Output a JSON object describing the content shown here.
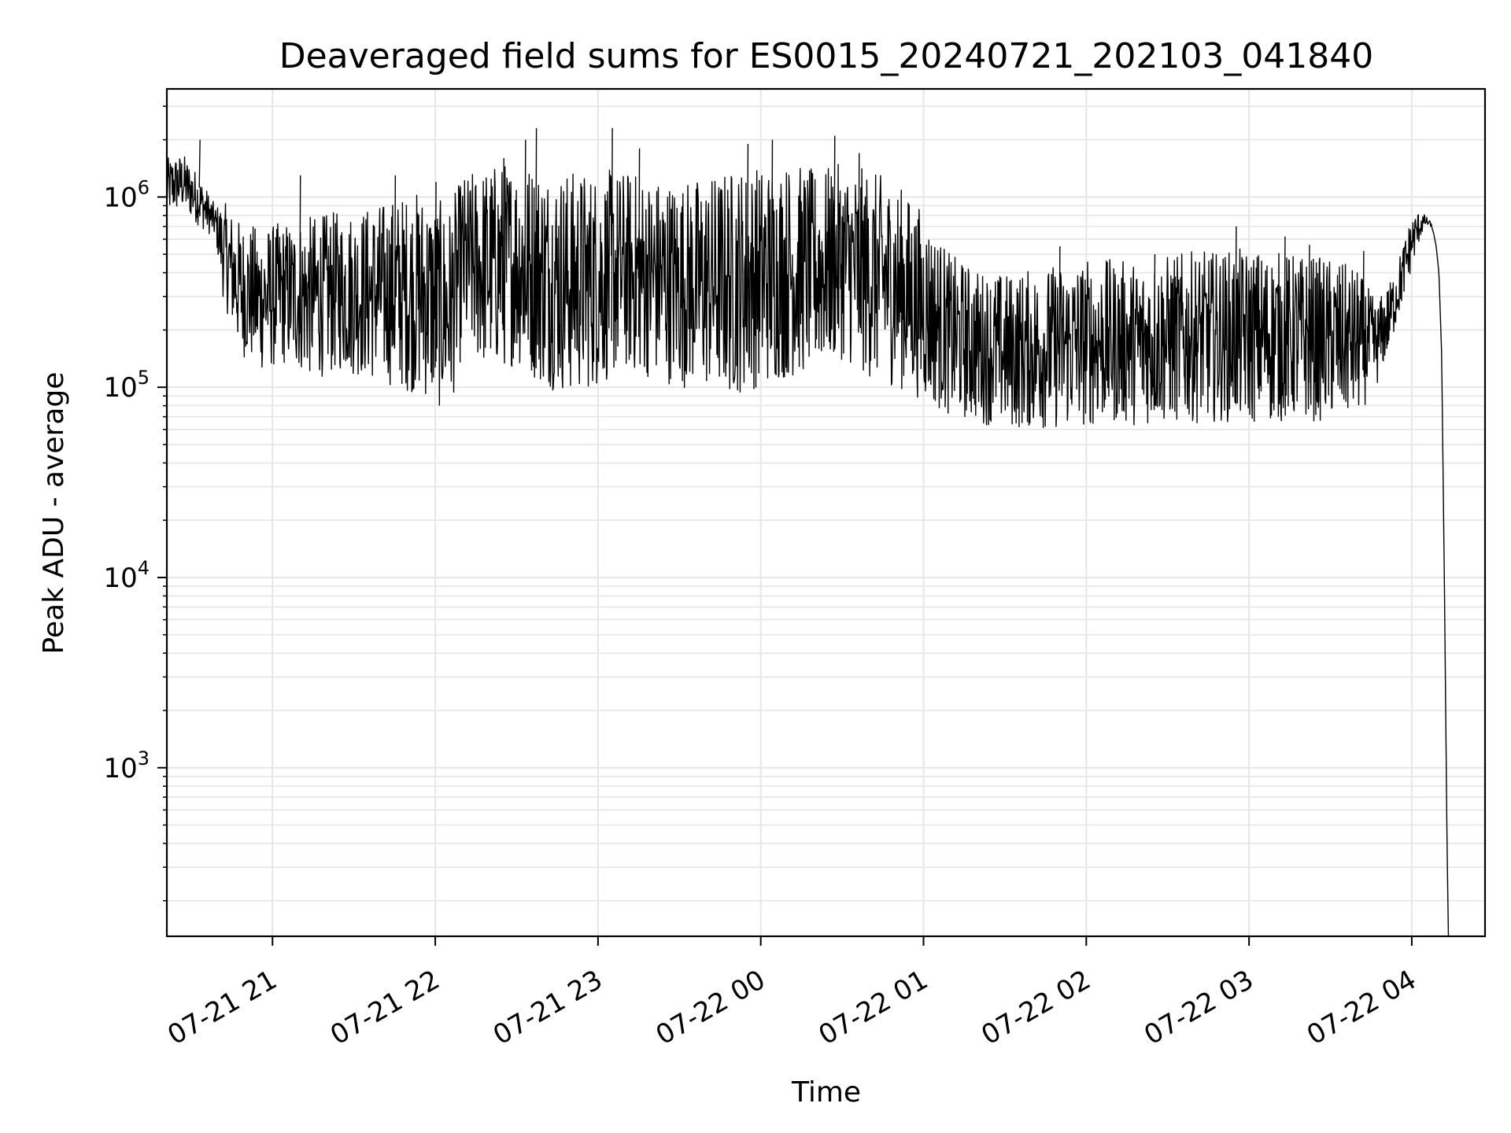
{
  "chart_data": {
    "type": "line",
    "title": "Deaveraged field sums for ES0015_20240721_202103_041840",
    "xlabel": "Time",
    "ylabel": "Peak ADU - average",
    "y_scale": "log",
    "x_axis": "datetime",
    "xlim": [
      "2024-07-21T20:21:03",
      "2024-07-22T04:27:00"
    ],
    "ylim": [
      130,
      3700000
    ],
    "grid": true,
    "grid_which": "both",
    "line_color": "#000000",
    "grid_color": "#e6e6e6",
    "x_ticks": [
      {
        "value": "2024-07-21T21:00:00",
        "label": "07-21 21"
      },
      {
        "value": "2024-07-21T22:00:00",
        "label": "07-21 22"
      },
      {
        "value": "2024-07-21T23:00:00",
        "label": "07-21 23"
      },
      {
        "value": "2024-07-22T00:00:00",
        "label": "07-22 00"
      },
      {
        "value": "2024-07-22T01:00:00",
        "label": "07-22 01"
      },
      {
        "value": "2024-07-22T02:00:00",
        "label": "07-22 02"
      },
      {
        "value": "2024-07-22T03:00:00",
        "label": "07-22 03"
      },
      {
        "value": "2024-07-22T04:00:00",
        "label": "07-22 04"
      }
    ],
    "y_ticks": [
      {
        "value": 1000,
        "base": "10",
        "exp": "3"
      },
      {
        "value": 10000,
        "base": "10",
        "exp": "4"
      },
      {
        "value": 100000,
        "base": "10",
        "exp": "5"
      },
      {
        "value": 1000000,
        "base": "10",
        "exp": "6"
      }
    ],
    "series": [
      {
        "x": [
          "2024-07-21T20:21:03",
          "2024-07-21T20:27:00",
          "2024-07-21T20:33:00",
          "2024-07-21T20:39:00",
          "2024-07-21T20:42:00",
          "2024-07-21T20:48:00",
          "2024-07-21T20:55:00",
          "2024-07-21T21:05:00",
          "2024-07-21T21:15:00",
          "2024-07-21T21:25:00",
          "2024-07-21T21:35:00",
          "2024-07-21T21:45:00",
          "2024-07-21T21:55:00",
          "2024-07-21T22:05:00",
          "2024-07-21T22:10:00",
          "2024-07-21T22:20:00",
          "2024-07-21T22:30:00",
          "2024-07-21T22:40:00",
          "2024-07-21T22:50:00",
          "2024-07-21T23:00:00",
          "2024-07-21T23:10:00",
          "2024-07-21T23:20:00",
          "2024-07-21T23:30:00",
          "2024-07-21T23:40:00",
          "2024-07-21T23:50:00",
          "2024-07-22T00:00:00",
          "2024-07-22T00:10:00",
          "2024-07-22T00:20:00",
          "2024-07-22T00:30:00",
          "2024-07-22T00:40:00",
          "2024-07-22T00:50:00",
          "2024-07-22T01:00:00",
          "2024-07-22T01:10:00",
          "2024-07-22T01:20:00",
          "2024-07-22T01:30:00",
          "2024-07-22T01:40:00",
          "2024-07-22T01:50:00",
          "2024-07-22T02:00:00",
          "2024-07-22T02:10:00",
          "2024-07-22T02:20:00",
          "2024-07-22T02:30:00",
          "2024-07-22T02:40:00",
          "2024-07-22T02:50:00",
          "2024-07-22T03:00:00",
          "2024-07-22T03:10:00",
          "2024-07-22T03:20:00",
          "2024-07-22T03:30:00",
          "2024-07-22T03:40:00",
          "2024-07-22T03:47:00",
          "2024-07-22T03:52:00",
          "2024-07-22T03:56:00",
          "2024-07-22T04:00:00",
          "2024-07-22T04:03:00",
          "2024-07-22T04:05:00",
          "2024-07-22T04:07:00",
          "2024-07-22T04:08:00",
          "2024-07-22T04:09:00",
          "2024-07-22T04:10:00",
          "2024-07-22T04:11:00",
          "2024-07-22T04:12:00",
          "2024-07-22T04:13:00",
          "2024-07-22T04:13:30"
        ],
        "low": [
          800000,
          850000,
          700000,
          600000,
          280000,
          150000,
          120000,
          130000,
          110000,
          120000,
          110000,
          100000,
          90000,
          70000,
          150000,
          120000,
          130000,
          100000,
          90000,
          100000,
          120000,
          110000,
          100000,
          95000,
          90000,
          100000,
          110000,
          120000,
          140000,
          110000,
          100000,
          85000,
          70000,
          65000,
          60000,
          60000,
          60000,
          62000,
          64000,
          63000,
          64000,
          65000,
          66000,
          64000,
          65000,
          66000,
          66000,
          70000,
          100000,
          160000,
          260000,
          420000,
          600000,
          700000,
          700000,
          650000,
          550000,
          400000,
          150000,
          10000,
          400,
          130
        ],
        "high": [
          1600000,
          1700000,
          1300000,
          900000,
          950000,
          750000,
          700000,
          750000,
          800000,
          850000,
          900000,
          1000000,
          1100000,
          900000,
          1300000,
          1500000,
          1600000,
          1500000,
          1400000,
          1400000,
          1400000,
          1300000,
          1250000,
          1300000,
          1450000,
          1500000,
          1550000,
          1400000,
          1500000,
          1400000,
          1200000,
          850000,
          500000,
          420000,
          400000,
          420000,
          450000,
          480000,
          470000,
          460000,
          500000,
          520000,
          520000,
          540000,
          520000,
          500000,
          480000,
          420000,
          280000,
          360000,
          520000,
          800000,
          850000,
          800000,
          740000,
          650000,
          550000,
          400000,
          150000,
          10000,
          400,
          130
        ],
        "spikes": [
          {
            "x": "2024-07-21T20:33:00",
            "y": 2000000
          },
          {
            "x": "2024-07-21T21:10:00",
            "y": 1300000
          },
          {
            "x": "2024-07-21T21:45:00",
            "y": 1300000
          },
          {
            "x": "2024-07-21T22:00:00",
            "y": 1200000
          },
          {
            "x": "2024-07-21T22:25:00",
            "y": 1600000
          },
          {
            "x": "2024-07-21T22:33:00",
            "y": 2000000
          },
          {
            "x": "2024-07-21T22:37:00",
            "y": 2300000
          },
          {
            "x": "2024-07-21T23:05:00",
            "y": 2300000
          },
          {
            "x": "2024-07-21T23:15:00",
            "y": 1800000
          },
          {
            "x": "2024-07-21T23:55:00",
            "y": 1900000
          },
          {
            "x": "2024-07-22T00:04:00",
            "y": 2000000
          },
          {
            "x": "2024-07-22T00:27:00",
            "y": 2100000
          },
          {
            "x": "2024-07-22T00:36:00",
            "y": 1700000
          },
          {
            "x": "2024-07-22T01:50:00",
            "y": 550000
          },
          {
            "x": "2024-07-22T02:25:00",
            "y": 500000
          },
          {
            "x": "2024-07-22T02:55:00",
            "y": 700000
          },
          {
            "x": "2024-07-22T03:13:00",
            "y": 620000
          },
          {
            "x": "2024-07-22T03:22:00",
            "y": 560000
          },
          {
            "x": "2024-07-22T03:42:00",
            "y": 520000
          }
        ]
      }
    ]
  }
}
